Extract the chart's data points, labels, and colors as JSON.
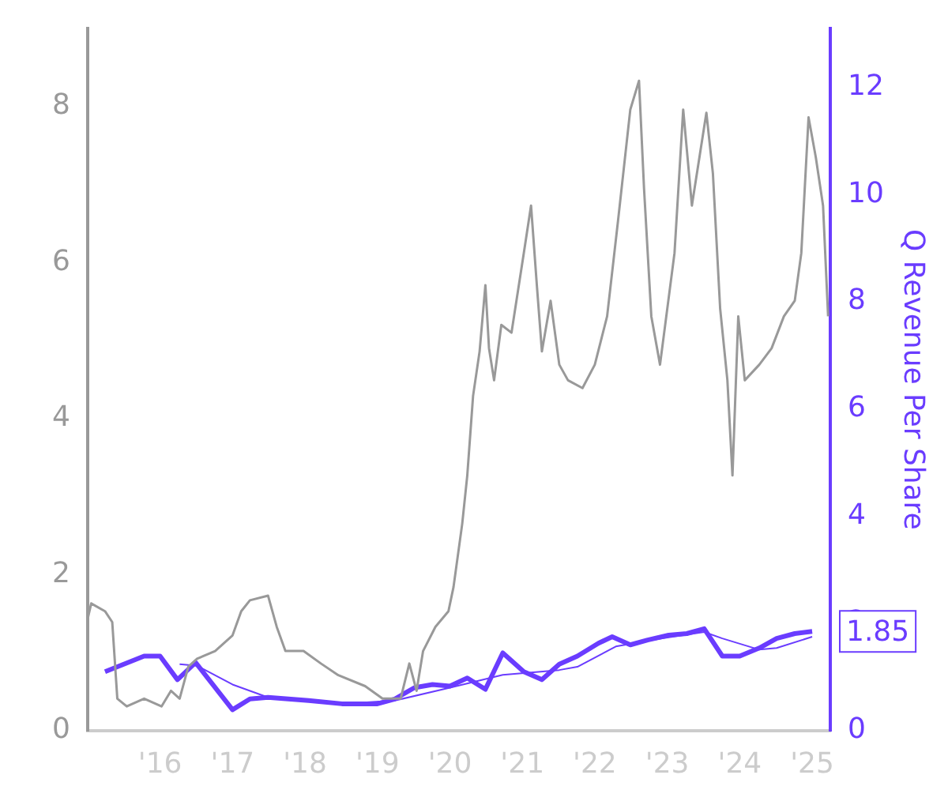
{
  "chart_data": {
    "type": "line",
    "y2label": "Q Revenue Per Share",
    "xlim": [
      2015,
      2025.25
    ],
    "xticks": [
      {
        "value": 2015,
        "label": null
      },
      {
        "value": 2016,
        "label": "'16"
      },
      {
        "value": 2017,
        "label": "'17"
      },
      {
        "value": 2018,
        "label": "'18"
      },
      {
        "value": 2019,
        "label": "'19"
      },
      {
        "value": 2020,
        "label": "'20"
      },
      {
        "value": 2021,
        "label": "'21"
      },
      {
        "value": 2022,
        "label": "'22"
      },
      {
        "value": 2023,
        "label": "'23"
      },
      {
        "value": 2024,
        "label": "'24"
      },
      {
        "value": 2025,
        "label": "'25"
      }
    ],
    "ylim": [
      0,
      9
    ],
    "yticks": [
      0,
      2,
      4,
      6,
      8
    ],
    "y2lim": [
      0,
      13.1
    ],
    "y2ticks": [
      0,
      2,
      4,
      6,
      8,
      10,
      12
    ],
    "grid": false,
    "legend": false,
    "marker": "none",
    "annotations": [
      "1.85"
    ],
    "series": [
      {
        "color": "#999999",
        "x": [
          2015.0,
          2015.05,
          2015.24,
          2015.34,
          2015.41,
          2015.54,
          2015.78,
          2016.02,
          2016.15,
          2016.27,
          2016.39,
          2016.51,
          2016.76,
          2017.0,
          2017.12,
          2017.24,
          2017.49,
          2017.61,
          2017.73,
          2017.98,
          2018.22,
          2018.46,
          2018.83,
          2019.07,
          2019.32,
          2019.44,
          2019.54,
          2019.63,
          2019.8,
          2019.98,
          2020.05,
          2020.17,
          2020.24,
          2020.32,
          2020.41,
          2020.49,
          2020.54,
          2020.61,
          2020.71,
          2020.85,
          2021.02,
          2021.12,
          2021.2,
          2021.27,
          2021.39,
          2021.51,
          2021.63,
          2021.83,
          2022.0,
          2022.17,
          2022.32,
          2022.49,
          2022.61,
          2022.68,
          2022.78,
          2022.9,
          2023.1,
          2023.22,
          2023.34,
          2023.54,
          2023.63,
          2023.73,
          2023.83,
          2023.9,
          2023.98,
          2024.07,
          2024.27,
          2024.44,
          2024.61,
          2024.76,
          2024.85,
          2024.95,
          2025.05,
          2025.15,
          2025.22
        ],
        "values": [
          1.43,
          1.63,
          1.53,
          1.39,
          0.41,
          0.31,
          0.41,
          0.31,
          0.51,
          0.41,
          0.82,
          0.92,
          1.02,
          1.22,
          1.53,
          1.67,
          1.73,
          1.33,
          1.02,
          1.02,
          0.86,
          0.71,
          0.57,
          0.41,
          0.41,
          0.86,
          0.51,
          1.02,
          1.33,
          1.53,
          1.84,
          2.65,
          3.27,
          4.29,
          4.86,
          5.71,
          4.9,
          4.49,
          5.2,
          5.1,
          6.12,
          6.73,
          5.71,
          4.86,
          5.51,
          4.69,
          4.49,
          4.39,
          4.69,
          5.31,
          6.53,
          7.96,
          8.33,
          6.94,
          5.31,
          4.69,
          6.12,
          7.96,
          6.73,
          7.92,
          7.14,
          5.41,
          4.49,
          3.27,
          5.31,
          4.49,
          4.69,
          4.9,
          5.31,
          5.51,
          6.12,
          7.86,
          7.35,
          6.73,
          5.31
        ]
      },
      {
        "color": "#6a3cff",
        "axis": "y2",
        "x": [
          2015.24,
          2015.78,
          2016.0,
          2016.24,
          2016.49,
          2017.0,
          2017.24,
          2017.49,
          2018.05,
          2018.51,
          2019.0,
          2019.24,
          2019.51,
          2019.76,
          2020.0,
          2020.24,
          2020.49,
          2020.73,
          2021.02,
          2021.27,
          2021.51,
          2021.76,
          2022.05,
          2022.24,
          2022.49,
          2022.73,
          2023.02,
          2023.27,
          2023.51,
          2023.76,
          2024.0,
          2024.27,
          2024.51,
          2024.76,
          2025.0
        ],
        "values": [
          1.1,
          1.39,
          1.39,
          0.95,
          1.27,
          0.39,
          0.59,
          0.62,
          0.56,
          0.5,
          0.5,
          0.59,
          0.8,
          0.86,
          0.83,
          0.98,
          0.77,
          1.45,
          1.1,
          0.95,
          1.24,
          1.39,
          1.63,
          1.75,
          1.6,
          1.69,
          1.78,
          1.81,
          1.9,
          1.39,
          1.39,
          1.54,
          1.72,
          1.81,
          1.85
        ]
      },
      {
        "color": "#6a3cff",
        "axis": "y2",
        "x": [
          2016.27,
          2016.51,
          2017.0,
          2017.49,
          2018.51,
          2019.24,
          2020.0,
          2020.73,
          2021.51,
          2021.76,
          2022.29,
          2022.93,
          2023.51,
          2023.76,
          2024.27,
          2024.51,
          2025.0
        ],
        "values": [
          1.24,
          1.21,
          0.86,
          0.62,
          0.5,
          0.56,
          0.8,
          1.04,
          1.13,
          1.19,
          1.57,
          1.72,
          1.84,
          1.72,
          1.51,
          1.54,
          1.75
        ]
      }
    ]
  }
}
